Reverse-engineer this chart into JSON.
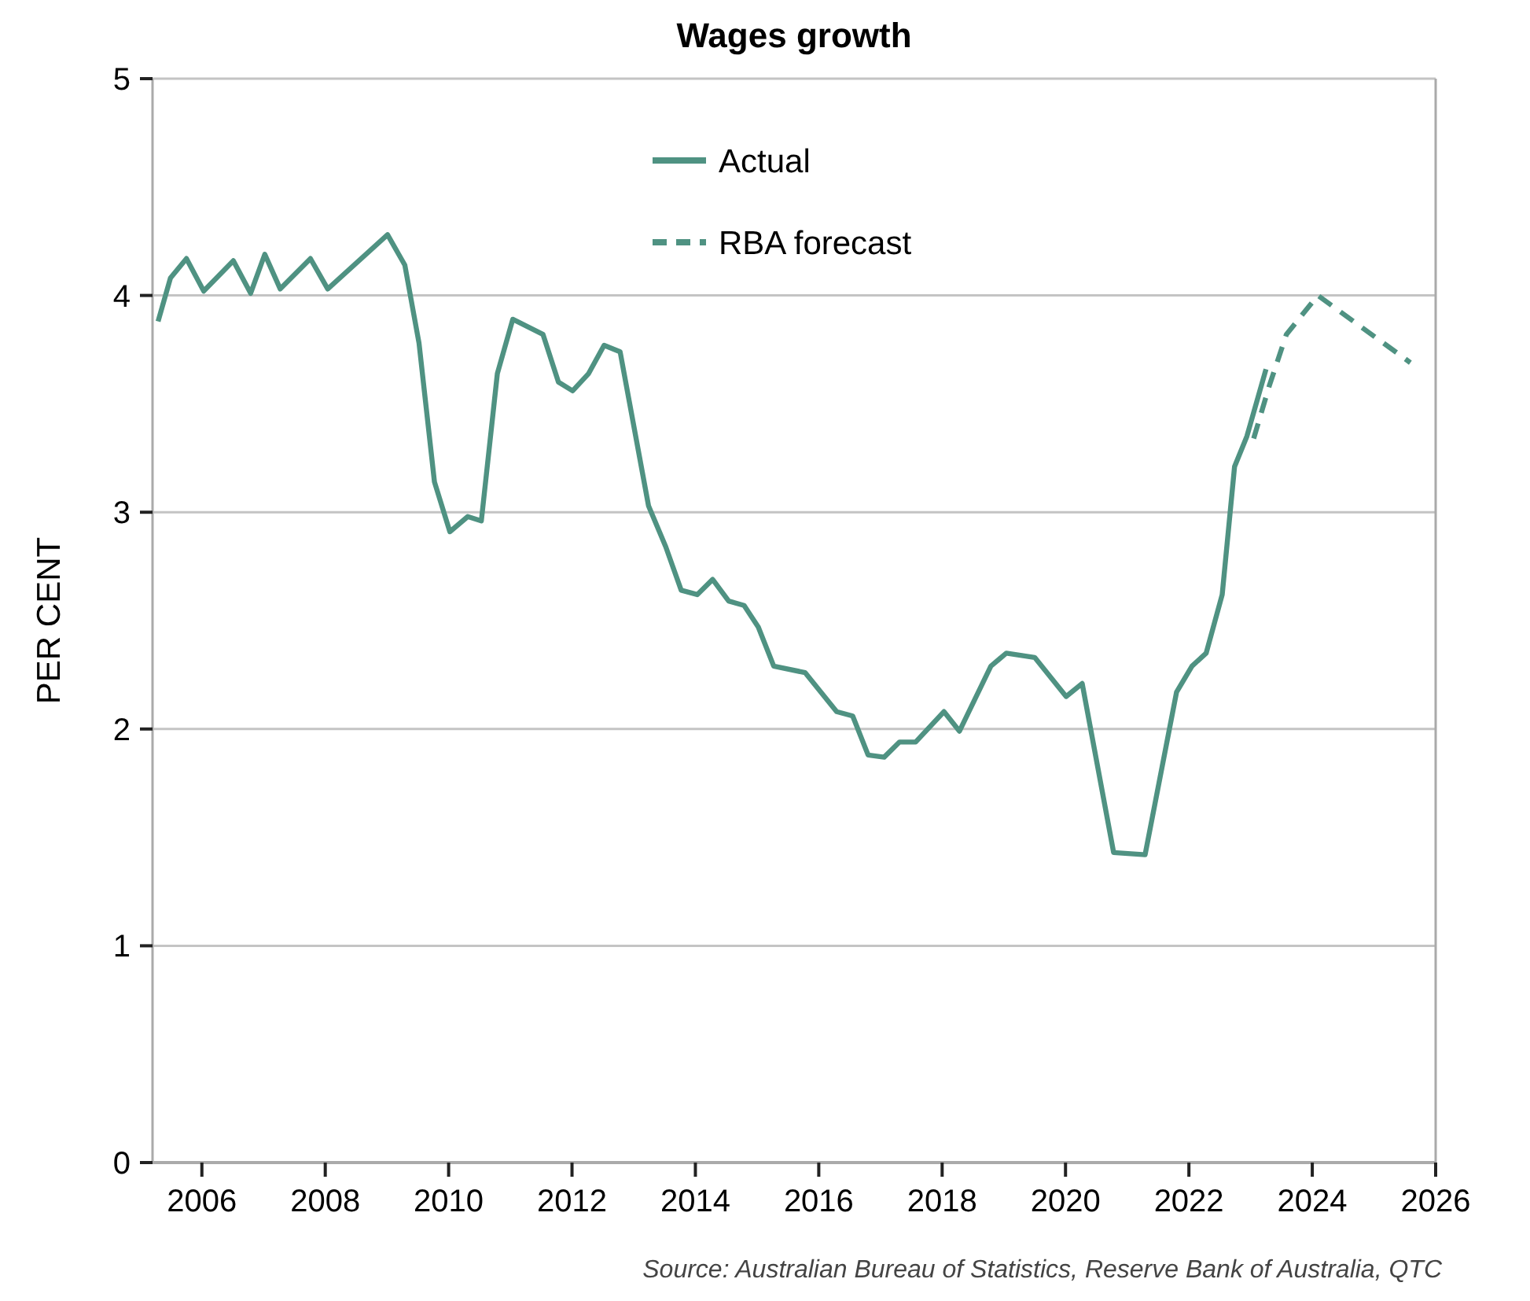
{
  "chart_data": {
    "type": "line",
    "title": "Wages growth",
    "ylabel": "PER CENT",
    "annotations": [
      "Source: Australian Bureau of Statistics, Reserve Bank of Australia, QTC"
    ],
    "xlim": [
      2005.2,
      2026
    ],
    "xticks": [
      2006,
      2008,
      2010,
      2012,
      2014,
      2016,
      2018,
      2020,
      2022,
      2024,
      2026
    ],
    "ylim": [
      0,
      5
    ],
    "yticks": [
      0,
      1,
      2,
      3,
      4,
      5
    ],
    "grid": "y",
    "legend": "top",
    "series": [
      {
        "name": "Actual",
        "color": "#4f9282",
        "line_style": "solid",
        "x": [
          2005.29,
          2005.49,
          2005.75,
          2006.03,
          2006.51,
          2006.79,
          2007.02,
          2007.27,
          2007.76,
          2008.04,
          2009.01,
          2009.29,
          2009.52,
          2009.77,
          2010.02,
          2010.31,
          2010.53,
          2010.79,
          2011.04,
          2011.53,
          2011.78,
          2012.01,
          2012.27,
          2012.52,
          2012.78,
          2013.24,
          2013.52,
          2013.77,
          2014.03,
          2014.28,
          2014.54,
          2014.79,
          2015.02,
          2015.27,
          2015.78,
          2016.29,
          2016.55,
          2016.8,
          2017.06,
          2017.31,
          2017.57,
          2018.03,
          2018.28,
          2018.79,
          2019.04,
          2019.5,
          2020.01,
          2020.27,
          2020.78,
          2021.29,
          2021.8,
          2022.05,
          2022.28,
          2022.54,
          2022.74,
          2022.94,
          2023.25
        ],
        "values": [
          3.88,
          4.08,
          4.17,
          4.02,
          4.16,
          4.01,
          4.19,
          4.03,
          4.17,
          4.03,
          4.28,
          4.14,
          3.78,
          3.14,
          2.91,
          2.98,
          2.96,
          3.64,
          3.89,
          3.82,
          3.6,
          3.56,
          3.64,
          3.77,
          3.74,
          3.03,
          2.84,
          2.64,
          2.62,
          2.69,
          2.59,
          2.57,
          2.47,
          2.29,
          2.26,
          2.08,
          2.06,
          1.88,
          1.87,
          1.94,
          1.94,
          2.08,
          1.99,
          2.29,
          2.35,
          2.33,
          2.15,
          2.21,
          1.43,
          1.42,
          2.17,
          2.29,
          2.35,
          2.62,
          3.21,
          3.35,
          3.66
        ]
      },
      {
        "name": "RBA forecast",
        "color": "#4f9282",
        "line_style": "dashed",
        "x": [
          2023.05,
          2023.3,
          2023.58,
          2024.09,
          2025.59
        ],
        "values": [
          3.34,
          3.58,
          3.82,
          4.0,
          3.69
        ]
      }
    ]
  }
}
